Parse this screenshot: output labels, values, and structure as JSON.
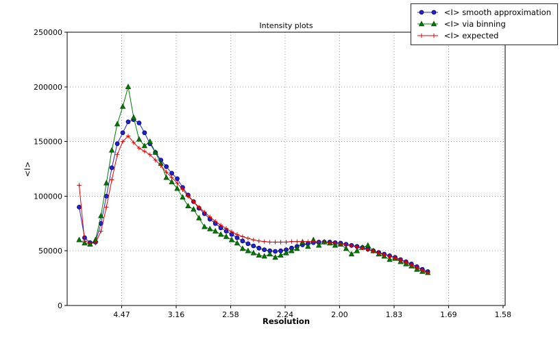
{
  "chart_data": {
    "type": "line",
    "title": "Intensity plots",
    "xlabel": "Resolution",
    "ylabel": "<I>",
    "grid": true,
    "legend_position": "top-right",
    "x_axis": {
      "range": [
        0,
        0.402
      ],
      "ticks": [
        0.05,
        0.1,
        0.15,
        0.2,
        0.25,
        0.3,
        0.35,
        0.4
      ],
      "tick_labels": [
        "4.47",
        "3.16",
        "2.58",
        "2.24",
        "2.00",
        "1.83",
        "1.69",
        "1.58"
      ]
    },
    "y_axis": {
      "range": [
        0,
        250000
      ],
      "ticks": [
        0,
        50000,
        100000,
        150000,
        200000,
        250000
      ],
      "tick_labels": [
        "0",
        "50000",
        "100000",
        "150000",
        "200000",
        "250000"
      ]
    },
    "x": [
      0.011,
      0.016,
      0.021,
      0.026,
      0.031,
      0.036,
      0.041,
      0.046,
      0.051,
      0.056,
      0.061,
      0.066,
      0.071,
      0.076,
      0.081,
      0.086,
      0.091,
      0.096,
      0.101,
      0.106,
      0.111,
      0.116,
      0.121,
      0.126,
      0.131,
      0.136,
      0.141,
      0.146,
      0.151,
      0.156,
      0.161,
      0.166,
      0.171,
      0.176,
      0.181,
      0.186,
      0.191,
      0.196,
      0.201,
      0.206,
      0.211,
      0.216,
      0.221,
      0.226,
      0.231,
      0.236,
      0.241,
      0.246,
      0.251,
      0.256,
      0.261,
      0.266,
      0.271,
      0.276,
      0.281,
      0.286,
      0.291,
      0.296,
      0.301,
      0.306,
      0.311,
      0.316,
      0.321,
      0.326,
      0.331
    ],
    "series": [
      {
        "name": "<I> smooth approximation",
        "color": "#2323cc",
        "edge": "#000070",
        "marker": "circle",
        "values": [
          90000,
          62000,
          57500,
          58000,
          75000,
          100000,
          126000,
          148000,
          158000,
          168000,
          170000,
          167000,
          158000,
          148000,
          140000,
          133000,
          127000,
          121000,
          116000,
          108000,
          101000,
          95000,
          89000,
          84000,
          79000,
          75000,
          71000,
          68000,
          65000,
          62000,
          59000,
          56500,
          54500,
          52500,
          51000,
          50000,
          49500,
          50000,
          51000,
          52500,
          54000,
          55500,
          56500,
          57500,
          58000,
          58000,
          58000,
          57500,
          57000,
          56000,
          55000,
          54000,
          53000,
          51500,
          50000,
          48500,
          47000,
          45500,
          44000,
          42000,
          40000,
          38000,
          35500,
          33000,
          31000
        ]
      },
      {
        "name": "<I> via binning",
        "color": "#007a00",
        "edge": "#004500",
        "marker": "triangle",
        "values": [
          60000,
          57000,
          56000,
          60000,
          82000,
          112000,
          142000,
          166000,
          182000,
          200000,
          172000,
          152000,
          146000,
          150000,
          140000,
          130000,
          117000,
          113000,
          107000,
          99000,
          91000,
          88000,
          80000,
          72000,
          70000,
          68000,
          65000,
          63000,
          60000,
          57000,
          52000,
          50000,
          48000,
          46000,
          45000,
          47000,
          44000,
          46000,
          48000,
          50000,
          52000,
          58000,
          54000,
          60000,
          55000,
          58000,
          57000,
          55000,
          56000,
          52000,
          47000,
          50000,
          53000,
          55000,
          50000,
          47000,
          45000,
          42000,
          43000,
          40000,
          38000,
          36000,
          33000,
          31000,
          30000
        ]
      },
      {
        "name": "<I> expected",
        "color": "#e00000",
        "edge": "#a00000",
        "marker": "plus",
        "values": [
          110000,
          59000,
          57000,
          57000,
          68000,
          90000,
          115000,
          138000,
          150000,
          155000,
          149000,
          144000,
          141000,
          138000,
          133000,
          128000,
          122000,
          117000,
          112000,
          106000,
          100000,
          95000,
          90000,
          85500,
          81000,
          77000,
          73500,
          70500,
          67500,
          65000,
          63000,
          61500,
          60000,
          59000,
          58500,
          58000,
          58000,
          58000,
          58000,
          58500,
          58500,
          58500,
          58500,
          58500,
          58000,
          58000,
          57500,
          57000,
          56500,
          55500,
          54500,
          53500,
          52500,
          51000,
          49500,
          48000,
          46500,
          45000,
          43500,
          41500,
          39500,
          37000,
          34500,
          32000,
          30000
        ]
      }
    ]
  }
}
